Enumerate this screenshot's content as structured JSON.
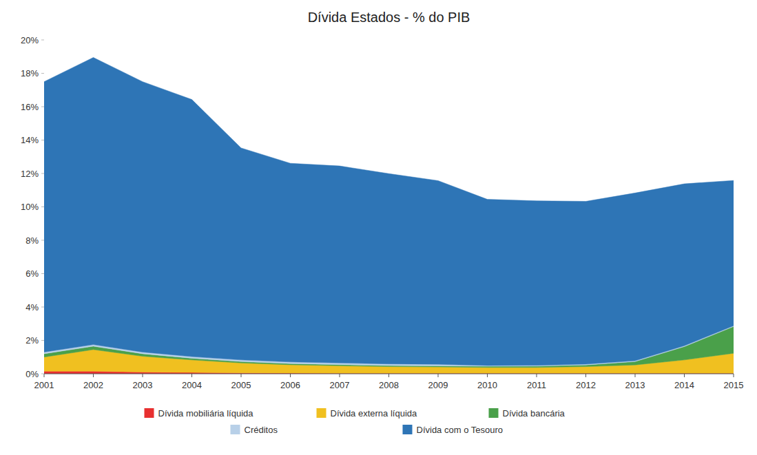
{
  "chart_data": {
    "type": "area",
    "stacked": true,
    "title": "Dívida Estados - % do PIB",
    "x": [
      2001,
      2002,
      2003,
      2004,
      2005,
      2006,
      2007,
      2008,
      2009,
      2010,
      2011,
      2012,
      2013,
      2014,
      2015
    ],
    "series": [
      {
        "name": "Dívida mobiliária líquida",
        "color": "#e83030",
        "values": [
          0.0015,
          0.0015,
          0.001,
          0.0008,
          0.0005,
          0.0004,
          0.0003,
          0.0003,
          0.0003,
          0.0003,
          0.0003,
          0.0003,
          0.0003,
          0.0003,
          0.0003
        ]
      },
      {
        "name": "Dívida externa líquida",
        "color": "#f0c020",
        "values": [
          0.0085,
          0.013,
          0.0095,
          0.0075,
          0.006,
          0.005,
          0.0045,
          0.004,
          0.0038,
          0.0035,
          0.0035,
          0.004,
          0.005,
          0.008,
          0.012
        ]
      },
      {
        "name": "Dívida bancária",
        "color": "#4aa04a",
        "values": [
          0.002,
          0.002,
          0.0015,
          0.001,
          0.0008,
          0.0007,
          0.0007,
          0.0006,
          0.0006,
          0.0007,
          0.0008,
          0.001,
          0.002,
          0.008,
          0.016
        ]
      },
      {
        "name": "Créditos",
        "color": "#b8d0e8",
        "values": [
          0.001,
          0.001,
          0.001,
          0.001,
          0.001,
          0.001,
          0.001,
          0.001,
          0.001,
          0.0005,
          0.0005,
          0.0005,
          0.0005,
          0.0005,
          0.0005
        ]
      },
      {
        "name": "Dívida com o Tesouro",
        "color": "#2e75b6",
        "values": [
          0.162,
          0.172,
          0.162,
          0.154,
          0.127,
          0.119,
          0.118,
          0.114,
          0.11,
          0.0995,
          0.0985,
          0.0975,
          0.1005,
          0.097,
          0.087
        ]
      }
    ],
    "xlim": [
      2001,
      2015
    ],
    "xticks": [
      2001,
      2002,
      2003,
      2004,
      2005,
      2006,
      2007,
      2008,
      2009,
      2010,
      2011,
      2012,
      2013,
      2014,
      2015
    ],
    "ylim": [
      0,
      0.2
    ],
    "yticks": [
      {
        "value": 0.0,
        "label": "0%"
      },
      {
        "value": 0.02,
        "label": "2%"
      },
      {
        "value": 0.04,
        "label": "4%"
      },
      {
        "value": 0.06,
        "label": "6%"
      },
      {
        "value": 0.08,
        "label": "8%"
      },
      {
        "value": 0.1,
        "label": "10%"
      },
      {
        "value": 0.12,
        "label": "12%"
      },
      {
        "value": 0.14,
        "label": "14%"
      },
      {
        "value": 0.16,
        "label": "16%"
      },
      {
        "value": 0.18,
        "label": "18%"
      },
      {
        "value": 0.2,
        "label": "20%"
      }
    ],
    "grid": false,
    "legend": "bottom"
  }
}
